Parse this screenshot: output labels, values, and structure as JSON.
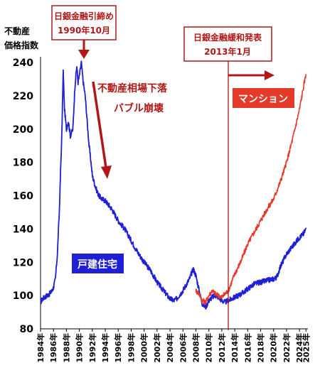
{
  "chart_data": {
    "type": "line",
    "ylabel_lines": [
      "不動産",
      "価格指数"
    ],
    "ylim": [
      80,
      240
    ],
    "yticks": [
      80,
      100,
      120,
      140,
      160,
      180,
      200,
      220,
      240
    ],
    "xlim": [
      1984,
      2025.3
    ],
    "xtick_labels": [
      "1984年",
      "1986年",
      "1988年",
      "1990年",
      "1992年",
      "1994年",
      "1996年",
      "1998年",
      "2000年",
      "2002年",
      "2004年",
      "2006年",
      "2008年",
      "2010年",
      "2012年",
      "2014年",
      "2016年",
      "2018年",
      "2020年",
      "2022年",
      "2024年",
      "2025年"
    ],
    "xtick_values": [
      1984,
      1986,
      1988,
      1990,
      1992,
      1994,
      1996,
      1998,
      2000,
      2002,
      2004,
      2006,
      2008,
      2010,
      2012,
      2014,
      2016,
      2018,
      2020,
      2022,
      2024,
      2025
    ],
    "series": [
      {
        "name": "戸建住宅",
        "color": "#1f1fd6",
        "points": [
          [
            1984.0,
            96
          ],
          [
            1984.3,
            98
          ],
          [
            1984.6,
            99
          ],
          [
            1985.0,
            100
          ],
          [
            1985.4,
            101
          ],
          [
            1985.8,
            103
          ],
          [
            1986.0,
            105
          ],
          [
            1986.3,
            110
          ],
          [
            1986.6,
            125
          ],
          [
            1986.9,
            150
          ],
          [
            1987.1,
            175
          ],
          [
            1987.3,
            198
          ],
          [
            1987.5,
            235
          ],
          [
            1987.7,
            212
          ],
          [
            1988.0,
            200
          ],
          [
            1988.3,
            205
          ],
          [
            1988.6,
            196
          ],
          [
            1989.0,
            200
          ],
          [
            1989.3,
            225
          ],
          [
            1989.6,
            238
          ],
          [
            1989.8,
            228
          ],
          [
            1990.0,
            232
          ],
          [
            1990.3,
            240
          ],
          [
            1990.6,
            228
          ],
          [
            1990.9,
            220
          ],
          [
            1991.2,
            205
          ],
          [
            1991.5,
            190
          ],
          [
            1991.8,
            180
          ],
          [
            1992.0,
            172
          ],
          [
            1992.5,
            165
          ],
          [
            1993.0,
            160
          ],
          [
            1993.5,
            158
          ],
          [
            1994.0,
            157
          ],
          [
            1995.0,
            152
          ],
          [
            1996.0,
            145
          ],
          [
            1997.0,
            140
          ],
          [
            1998.0,
            133
          ],
          [
            1999.0,
            126
          ],
          [
            2000.0,
            120
          ],
          [
            2001.0,
            115
          ],
          [
            2002.0,
            108
          ],
          [
            2003.0,
            103
          ],
          [
            2004.0,
            98
          ],
          [
            2004.6,
            97
          ],
          [
            2005.0,
            98
          ],
          [
            2006.0,
            103
          ],
          [
            2007.0,
            110
          ],
          [
            2007.6,
            116
          ],
          [
            2008.0,
            112
          ],
          [
            2008.5,
            103
          ],
          [
            2009.0,
            95
          ],
          [
            2009.5,
            93
          ],
          [
            2010.0,
            97
          ],
          [
            2010.5,
            99
          ],
          [
            2011.0,
            100
          ],
          [
            2011.5,
            99
          ],
          [
            2012.0,
            97
          ],
          [
            2012.5,
            96
          ],
          [
            2013.0,
            97
          ],
          [
            2014.0,
            99
          ],
          [
            2015.0,
            101
          ],
          [
            2016.0,
            104
          ],
          [
            2017.0,
            107
          ],
          [
            2018.0,
            108
          ],
          [
            2019.0,
            109
          ],
          [
            2020.0,
            110
          ],
          [
            2020.5,
            111
          ],
          [
            2021.0,
            117
          ],
          [
            2022.0,
            125
          ],
          [
            2023.0,
            130
          ],
          [
            2024.0,
            135
          ],
          [
            2024.6,
            137
          ],
          [
            2025.0,
            140
          ]
        ]
      },
      {
        "name": "マンション",
        "color": "#e53a2a",
        "points": [
          [
            2008.0,
            103
          ],
          [
            2008.5,
            101
          ],
          [
            2009.0,
            97
          ],
          [
            2009.5,
            96
          ],
          [
            2010.0,
            100
          ],
          [
            2010.5,
            103
          ],
          [
            2011.0,
            101
          ],
          [
            2011.5,
            100
          ],
          [
            2012.0,
            99
          ],
          [
            2012.5,
            101
          ],
          [
            2013.0,
            103
          ],
          [
            2013.5,
            108
          ],
          [
            2014.0,
            113
          ],
          [
            2015.0,
            121
          ],
          [
            2016.0,
            131
          ],
          [
            2017.0,
            138
          ],
          [
            2018.0,
            145
          ],
          [
            2019.0,
            152
          ],
          [
            2020.0,
            158
          ],
          [
            2021.0,
            168
          ],
          [
            2022.0,
            180
          ],
          [
            2023.0,
            195
          ],
          [
            2024.0,
            212
          ],
          [
            2024.6,
            225
          ],
          [
            2025.0,
            233
          ]
        ]
      }
    ],
    "annotations": [
      {
        "id": "boj-tightening",
        "lines": [
          "日銀金融引締め",
          "1990年10月"
        ],
        "x": 1990.8
      },
      {
        "id": "boj-easing",
        "lines": [
          "日銀金融緩和発表",
          "2013年1月"
        ],
        "x": 2013.1
      }
    ],
    "callouts": [
      "不動産相場下落",
      "バブル崩壊"
    ],
    "series_labels": {
      "house": "戸建住宅",
      "condo": "マンション"
    }
  }
}
